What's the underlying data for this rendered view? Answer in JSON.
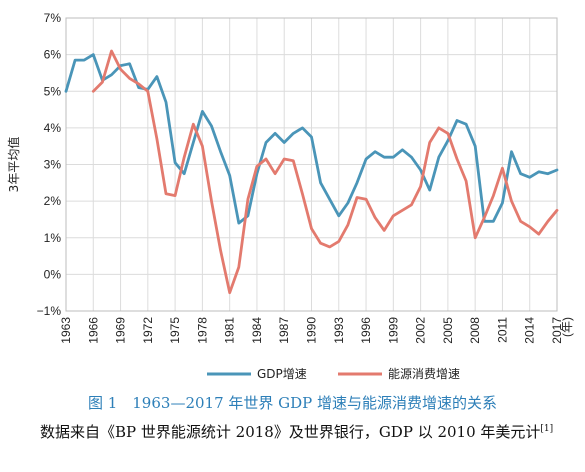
{
  "chart_data": {
    "type": "line",
    "ylabel": "3年平均值",
    "xunit": "(年)",
    "ylim": [
      -1,
      7
    ],
    "yticks": [
      "7%",
      "6%",
      "5%",
      "4%",
      "3%",
      "2%",
      "1%",
      "0%",
      "−1%"
    ],
    "ytick_values": [
      7,
      6,
      5,
      4,
      3,
      2,
      1,
      0,
      -1
    ],
    "xticks": [
      "1963",
      "1966",
      "1969",
      "1972",
      "1975",
      "1978",
      "1981",
      "1984",
      "1987",
      "1990",
      "1993",
      "1996",
      "1999",
      "2002",
      "2005",
      "2008",
      "2011",
      "2014",
      "2017"
    ],
    "xlim": [
      1963,
      2017
    ],
    "grid": true,
    "legend_position": "bottom",
    "series": [
      {
        "name": "GDP增速",
        "color": "#4a95b8",
        "x": [
          1963,
          1964,
          1965,
          1966,
          1967,
          1968,
          1969,
          1970,
          1971,
          1972,
          1973,
          1974,
          1975,
          1976,
          1977,
          1978,
          1979,
          1980,
          1981,
          1982,
          1983,
          1984,
          1985,
          1986,
          1987,
          1988,
          1989,
          1990,
          1991,
          1992,
          1993,
          1994,
          1995,
          1996,
          1997,
          1998,
          1999,
          2000,
          2001,
          2002,
          2003,
          2004,
          2005,
          2006,
          2007,
          2008,
          2009,
          2010,
          2011,
          2012,
          2013,
          2014,
          2015,
          2016,
          2017
        ],
        "values": [
          5.0,
          5.85,
          5.85,
          6.0,
          5.3,
          5.45,
          5.7,
          5.75,
          5.1,
          5.05,
          5.4,
          4.7,
          3.05,
          2.75,
          3.6,
          4.45,
          4.05,
          3.35,
          2.7,
          1.4,
          1.6,
          2.75,
          3.6,
          3.85,
          3.6,
          3.85,
          4.0,
          3.75,
          2.5,
          2.05,
          1.6,
          1.95,
          2.5,
          3.15,
          3.35,
          3.2,
          3.2,
          3.4,
          3.2,
          2.85,
          2.3,
          3.2,
          3.65,
          4.2,
          4.1,
          3.5,
          1.45,
          1.45,
          1.95,
          3.35,
          2.75,
          2.65,
          2.8,
          2.75,
          2.85
        ]
      },
      {
        "name": "能源消费增速",
        "color": "#e37a6e",
        "x": [
          1966,
          1967,
          1968,
          1969,
          1970,
          1971,
          1972,
          1973,
          1974,
          1975,
          1976,
          1977,
          1978,
          1979,
          1980,
          1981,
          1982,
          1983,
          1984,
          1985,
          1986,
          1987,
          1988,
          1989,
          1990,
          1991,
          1992,
          1993,
          1994,
          1995,
          1996,
          1997,
          1998,
          1999,
          2000,
          2001,
          2002,
          2003,
          2004,
          2005,
          2006,
          2007,
          2008,
          2009,
          2010,
          2011,
          2012,
          2013,
          2014,
          2015,
          2016,
          2017
        ],
        "values": [
          5.0,
          5.25,
          6.1,
          5.6,
          5.35,
          5.2,
          5.0,
          3.7,
          2.2,
          2.15,
          3.2,
          4.1,
          3.5,
          2.0,
          0.65,
          -0.5,
          0.2,
          2.05,
          2.95,
          3.15,
          2.75,
          3.15,
          3.1,
          2.2,
          1.25,
          0.85,
          0.75,
          0.9,
          1.35,
          2.1,
          2.05,
          1.55,
          1.2,
          1.6,
          1.75,
          1.9,
          2.4,
          3.6,
          4.0,
          3.85,
          3.15,
          2.55,
          1.0,
          1.55,
          2.15,
          2.9,
          2.0,
          1.45,
          1.3,
          1.1,
          1.45,
          1.75
        ]
      }
    ]
  },
  "caption": {
    "title": "图 1　1963—2017 年世界 GDP 增速与能源消费增速的关系",
    "note": "数据来自《BP 世界能源统计 2018》及世界银行，GDP 以 2010 年美元计",
    "note_ref": "[1]"
  }
}
